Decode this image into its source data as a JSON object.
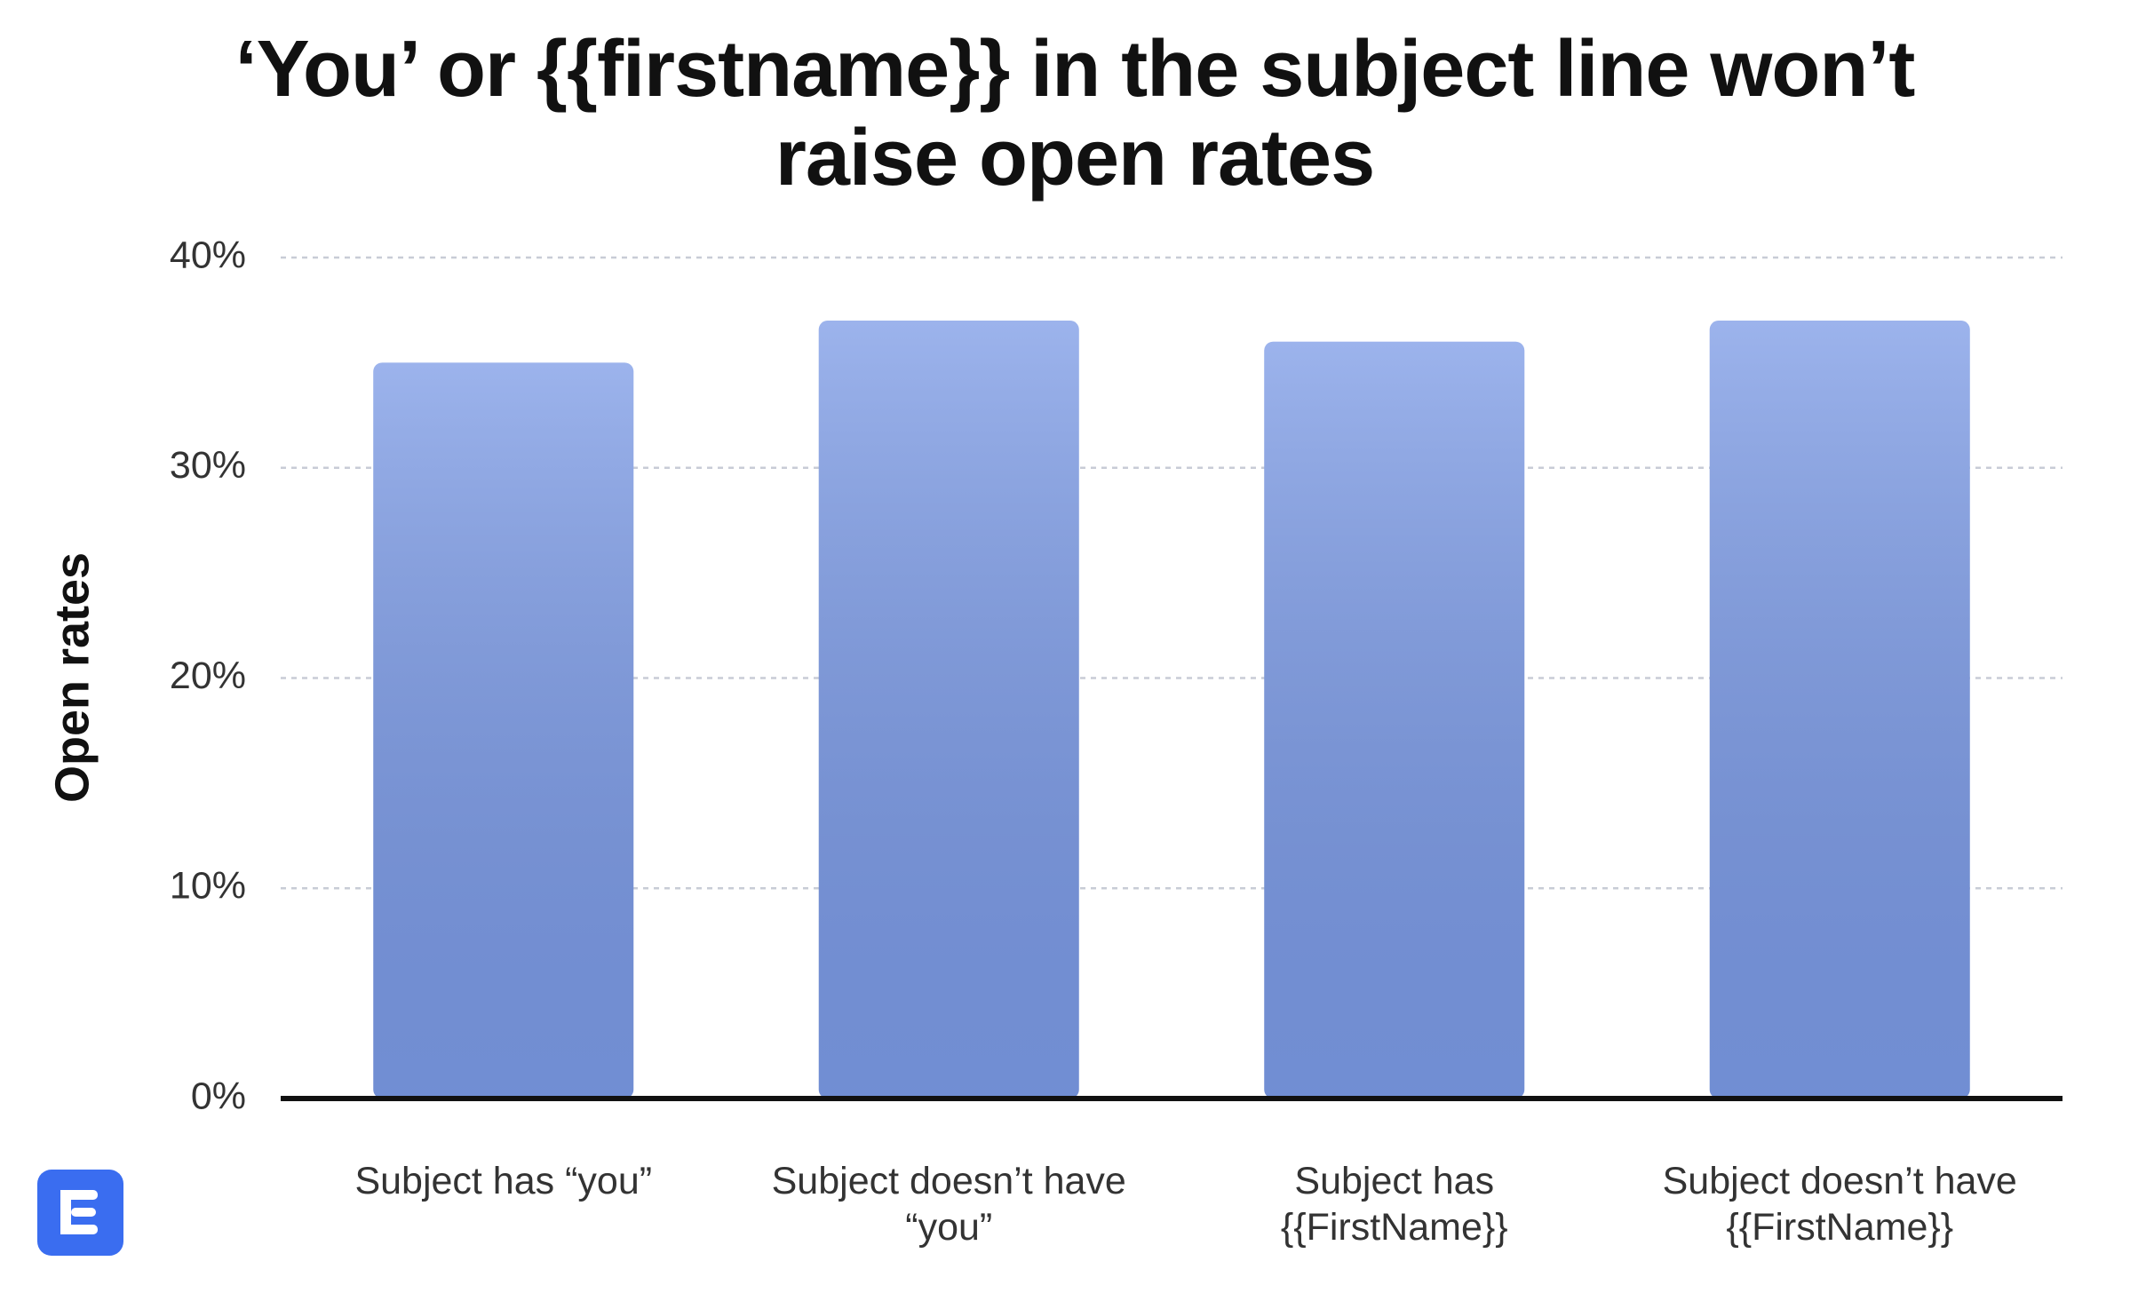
{
  "chart_data": {
    "type": "bar",
    "title": "‘You’ or {{firstname}} in the subject line won’t raise open rates",
    "y_label": "Open rates",
    "categories": [
      "Subject has “you”",
      "Subject doesn’t have “you”",
      "Subject has {{FirstName}}",
      "Subject doesn’t have {{FirstName}}"
    ],
    "values": [
      35,
      37,
      36,
      37
    ],
    "color": "#7b9ae6",
    "ylim": [
      0,
      40
    ],
    "yticks": [
      {
        "value": 0,
        "label": "0%"
      },
      {
        "value": 10,
        "label": "10%"
      },
      {
        "value": 20,
        "label": "20%"
      },
      {
        "value": 30,
        "label": "30%"
      },
      {
        "value": 40,
        "label": "40%"
      }
    ],
    "grid": true
  }
}
